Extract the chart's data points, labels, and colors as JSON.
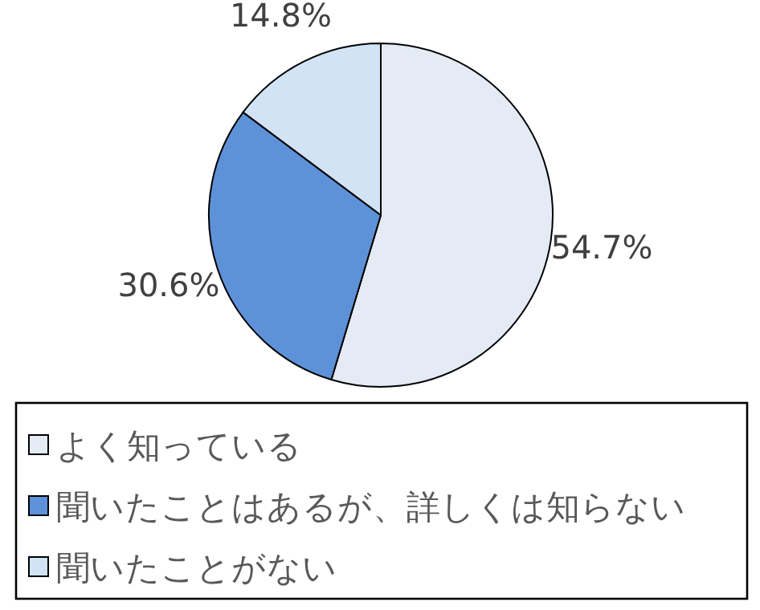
{
  "chart_data": {
    "type": "pie",
    "categories": [
      "よく知っている",
      "聞いたことはあるが、詳しくは知らない",
      "聞いたことがない"
    ],
    "values": [
      54.7,
      30.6,
      14.8
    ],
    "colors": [
      "#e4ebf5",
      "#5e92d8",
      "#d2e3f6"
    ],
    "value_labels": [
      "54.7%",
      "30.6%",
      "14.8%"
    ],
    "legend": "bottom"
  }
}
